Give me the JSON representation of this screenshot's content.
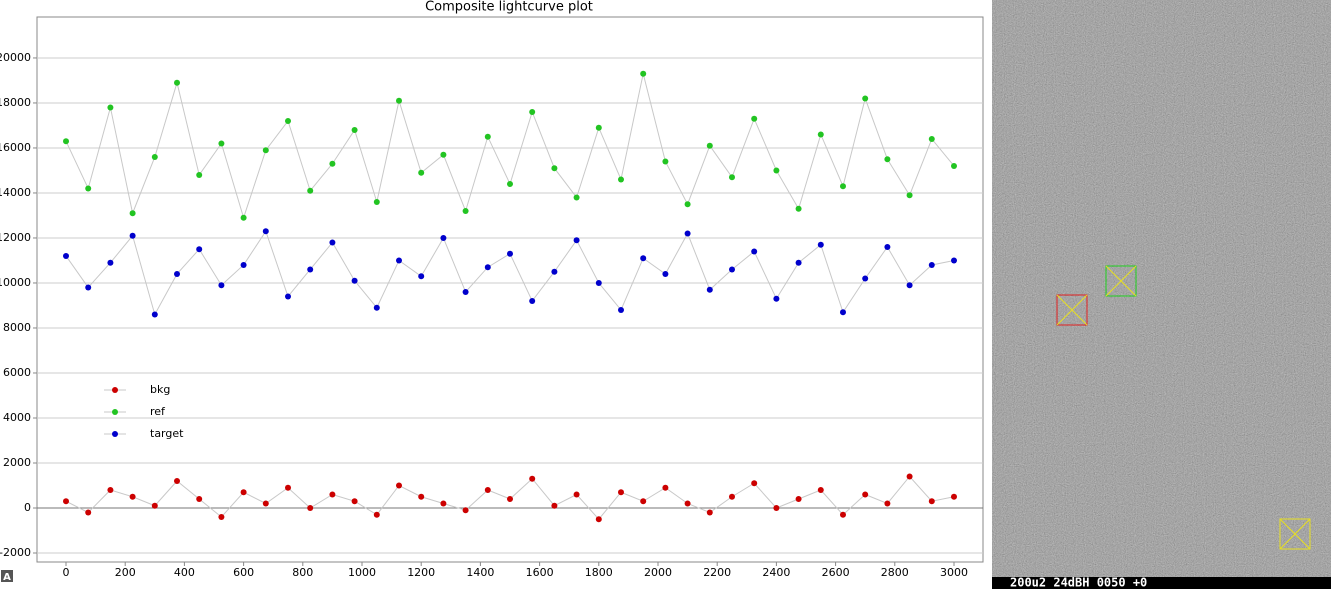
{
  "chart_data": {
    "type": "scatter-line",
    "title": "Composite lightcurve plot",
    "x": [
      0,
      75,
      150,
      225,
      300,
      375,
      450,
      525,
      600,
      675,
      750,
      825,
      900,
      975,
      1050,
      1125,
      1200,
      1275,
      1350,
      1425,
      1500,
      1575,
      1650,
      1725,
      1800,
      1875,
      1950,
      2025,
      2100,
      2175,
      2250,
      2325,
      2400,
      2475,
      2550,
      2625,
      2700,
      2775,
      2850,
      2925,
      3000
    ],
    "series": [
      {
        "name": "bkg",
        "color": "#cc0000",
        "values": [
          300,
          -200,
          800,
          500,
          100,
          1200,
          400,
          -400,
          700,
          200,
          900,
          0,
          600,
          300,
          -300,
          1000,
          500,
          200,
          -100,
          800,
          400,
          1300,
          100,
          600,
          -500,
          700,
          300,
          900,
          200,
          -200,
          500,
          1100,
          0,
          400,
          800,
          -300,
          600,
          200,
          1400,
          300,
          500
        ]
      },
      {
        "name": "ref",
        "color": "#22c422",
        "values": [
          16300,
          14200,
          17800,
          13100,
          15600,
          18900,
          14800,
          16200,
          12900,
          15900,
          17200,
          14100,
          15300,
          16800,
          13600,
          18100,
          14900,
          15700,
          13200,
          16500,
          14400,
          17600,
          15100,
          13800,
          16900,
          14600,
          19300,
          15400,
          13500,
          16100,
          14700,
          17300,
          15000,
          13300,
          16600,
          14300,
          18200,
          15500,
          13900,
          16400,
          15200
        ]
      },
      {
        "name": "target",
        "color": "#0000cc",
        "values": [
          11200,
          9800,
          10900,
          12100,
          8600,
          10400,
          11500,
          9900,
          10800,
          12300,
          9400,
          10600,
          11800,
          10100,
          8900,
          11000,
          10300,
          12000,
          9600,
          10700,
          11300,
          9200,
          10500,
          11900,
          10000,
          8800,
          11100,
          10400,
          12200,
          9700,
          10600,
          11400,
          9300,
          10900,
          11700,
          8700,
          10200,
          11600,
          9900,
          10800,
          11000
        ]
      }
    ],
    "line_color": "#c8c8c8",
    "xlim": [
      -98,
      3098
    ],
    "ylim": [
      -2400,
      21820
    ],
    "xticks": [
      0,
      200,
      400,
      600,
      800,
      1000,
      1200,
      1400,
      1600,
      1800,
      2000,
      2200,
      2400,
      2600,
      2800,
      3000
    ],
    "yticks": [
      -2000,
      0,
      2000,
      4000,
      6000,
      8000,
      10000,
      12000,
      14000,
      16000,
      18000,
      20000
    ],
    "grid": true,
    "legend": "center left"
  },
  "corner_button": "A",
  "image_panel": {
    "caption": "200u2 24dBH 0050 +0"
  }
}
